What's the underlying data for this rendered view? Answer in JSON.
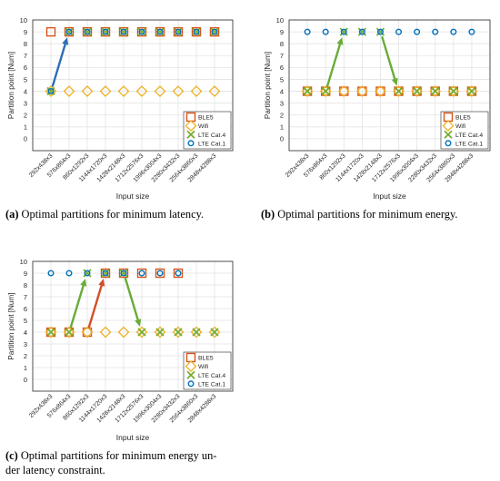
{
  "legend_labels": {
    "ble": "BLE5",
    "wifi": "Wifi",
    "lte4": "LTE Cat.4",
    "lte1": "LTE Cat.1"
  },
  "colors": {
    "ble": "#d95319",
    "wifi": "#edb120",
    "lte4": "#77ac30",
    "lte1": "#0072bd",
    "arrow_blue": "#2e6eb5",
    "arrow_green": "#6aab3a",
    "arrow_red": "#d0502a"
  },
  "captions": {
    "a": {
      "tag": "(a)",
      "text": " Optimal partitions for minimum latency."
    },
    "b": {
      "tag": "(b)",
      "text": " Optimal partitions for minimum energy."
    },
    "c": {
      "tag": "(c)",
      "text_line1": " Optimal partitions for minimum energy un-",
      "text_line2": "der latency constraint."
    }
  },
  "chart_data": [
    {
      "id": "a",
      "type": "scatter",
      "xlabel": "Input size",
      "ylabel": "Partition point [Num]",
      "categories": [
        "292x438x3",
        "576x864x3",
        "860x1292x3",
        "1144x1720x3",
        "1428x2148x3",
        "1712x2576x3",
        "1996x3004x3",
        "2280x3432x3",
        "2564x3860x3",
        "2848x4288x3"
      ],
      "ylim": [
        -1,
        10
      ],
      "yticks": [
        0,
        1,
        2,
        3,
        4,
        5,
        6,
        7,
        8,
        9,
        10
      ],
      "grid": true,
      "legend": "bottom-right",
      "series": [
        {
          "name": "BLE5",
          "marker": "square",
          "values": [
            9,
            9,
            9,
            9,
            9,
            9,
            9,
            9,
            9,
            9
          ]
        },
        {
          "name": "Wifi",
          "marker": "diamond",
          "values": [
            4,
            4,
            4,
            4,
            4,
            4,
            4,
            4,
            4,
            4
          ]
        },
        {
          "name": "LTE Cat.4",
          "marker": "x",
          "values": [
            4,
            9,
            9,
            9,
            9,
            9,
            9,
            9,
            9,
            9
          ]
        },
        {
          "name": "LTE Cat.1",
          "marker": "circle",
          "values": [
            4,
            9,
            9,
            9,
            9,
            9,
            9,
            9,
            9,
            9
          ]
        }
      ],
      "arrows": [
        {
          "from": [
            0,
            4
          ],
          "to": [
            1,
            9
          ],
          "color": "blue"
        }
      ]
    },
    {
      "id": "b",
      "type": "scatter",
      "xlabel": "Input size",
      "ylabel": "Partition point [Num]",
      "categories": [
        "292x438x3",
        "576x864x3",
        "860x1292x3",
        "1144x1720x3",
        "1428x2148x3",
        "1712x2576x3",
        "1996x3004x3",
        "2280x3432x3",
        "2564x3860x3",
        "2848x4288x3"
      ],
      "ylim": [
        -1,
        10
      ],
      "yticks": [
        0,
        1,
        2,
        3,
        4,
        5,
        6,
        7,
        8,
        9,
        10
      ],
      "grid": true,
      "legend": "bottom-right",
      "series": [
        {
          "name": "BLE5",
          "marker": "square",
          "values": [
            4,
            4,
            4,
            4,
            4,
            4,
            4,
            4,
            4,
            4
          ]
        },
        {
          "name": "Wifi",
          "marker": "diamond",
          "values": [
            4,
            4,
            4,
            4,
            4,
            4,
            4,
            4,
            4,
            4
          ]
        },
        {
          "name": "LTE Cat.4",
          "marker": "x",
          "values": [
            4,
            4,
            9,
            9,
            9,
            4,
            4,
            4,
            4,
            4
          ]
        },
        {
          "name": "LTE Cat.1",
          "marker": "circle",
          "values": [
            9,
            9,
            9,
            9,
            9,
            9,
            9,
            9,
            9,
            9
          ]
        }
      ],
      "arrows": [
        {
          "from": [
            1,
            4
          ],
          "to": [
            2,
            9
          ],
          "color": "green"
        },
        {
          "from": [
            4,
            9
          ],
          "to": [
            5,
            4
          ],
          "color": "green"
        }
      ]
    },
    {
      "id": "c",
      "type": "scatter",
      "xlabel": "Input size",
      "ylabel": "Partition point [Num]",
      "categories": [
        "292x438x3",
        "576x864x3",
        "860x1292x3",
        "1144x1720x3",
        "1428x2148x3",
        "1712x2576x3",
        "1996x3004x3",
        "2280x3432x3",
        "2564x3860x3",
        "2848x4288x3"
      ],
      "ylim": [
        -1,
        10
      ],
      "yticks": [
        0,
        1,
        2,
        3,
        4,
        5,
        6,
        7,
        8,
        9,
        10
      ],
      "grid": true,
      "legend": "bottom-right",
      "series": [
        {
          "name": "BLE5",
          "marker": "square",
          "values": [
            4,
            4,
            4,
            9,
            9,
            9,
            9,
            9,
            null,
            null
          ]
        },
        {
          "name": "Wifi",
          "marker": "diamond",
          "values": [
            4,
            4,
            4,
            4,
            4,
            4,
            4,
            4,
            4,
            4
          ]
        },
        {
          "name": "LTE Cat.4",
          "marker": "x",
          "values": [
            4,
            4,
            9,
            9,
            9,
            4,
            4,
            4,
            4,
            4
          ]
        },
        {
          "name": "LTE Cat.1",
          "marker": "circle",
          "values": [
            9,
            9,
            9,
            9,
            9,
            9,
            9,
            9,
            null,
            null
          ]
        }
      ],
      "arrows": [
        {
          "from": [
            1,
            4
          ],
          "to": [
            2,
            9
          ],
          "color": "green"
        },
        {
          "from": [
            2,
            4
          ],
          "to": [
            3,
            9
          ],
          "color": "red"
        },
        {
          "from": [
            4,
            9
          ],
          "to": [
            5,
            4
          ],
          "color": "green"
        }
      ]
    }
  ]
}
